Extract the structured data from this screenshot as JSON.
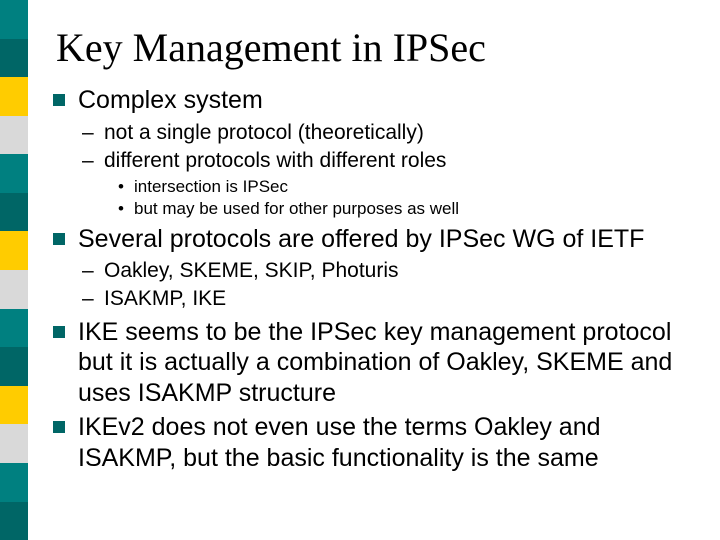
{
  "edge_colors": [
    "#008080",
    "#006666",
    "#ffcc00",
    "#d9d9d9",
    "#008080",
    "#006666",
    "#ffcc00",
    "#d9d9d9",
    "#008080",
    "#006666",
    "#ffcc00",
    "#d9d9d9",
    "#008080",
    "#006666"
  ],
  "title": "Key Management in IPSec",
  "items": [
    {
      "text": "Complex system",
      "children": [
        {
          "text": "not a single protocol (theoretically)"
        },
        {
          "text": "different protocols with different roles",
          "children": [
            {
              "text": "intersection is IPSec"
            },
            {
              "text": "but may be used for other purposes as well"
            }
          ]
        }
      ]
    },
    {
      "text": "Several protocols are offered by IPSec WG of IETF",
      "children": [
        {
          "text": "Oakley, SKEME, SKIP, Photuris"
        },
        {
          "text": "ISAKMP, IKE"
        }
      ]
    },
    {
      "text": "IKE seems to be the IPSec key management protocol but it is actually a combination of Oakley, SKEME and uses ISAKMP structure"
    },
    {
      "text": "IKEv2 does not even use the terms Oakley and ISAKMP, but the basic functionality is the same"
    }
  ]
}
